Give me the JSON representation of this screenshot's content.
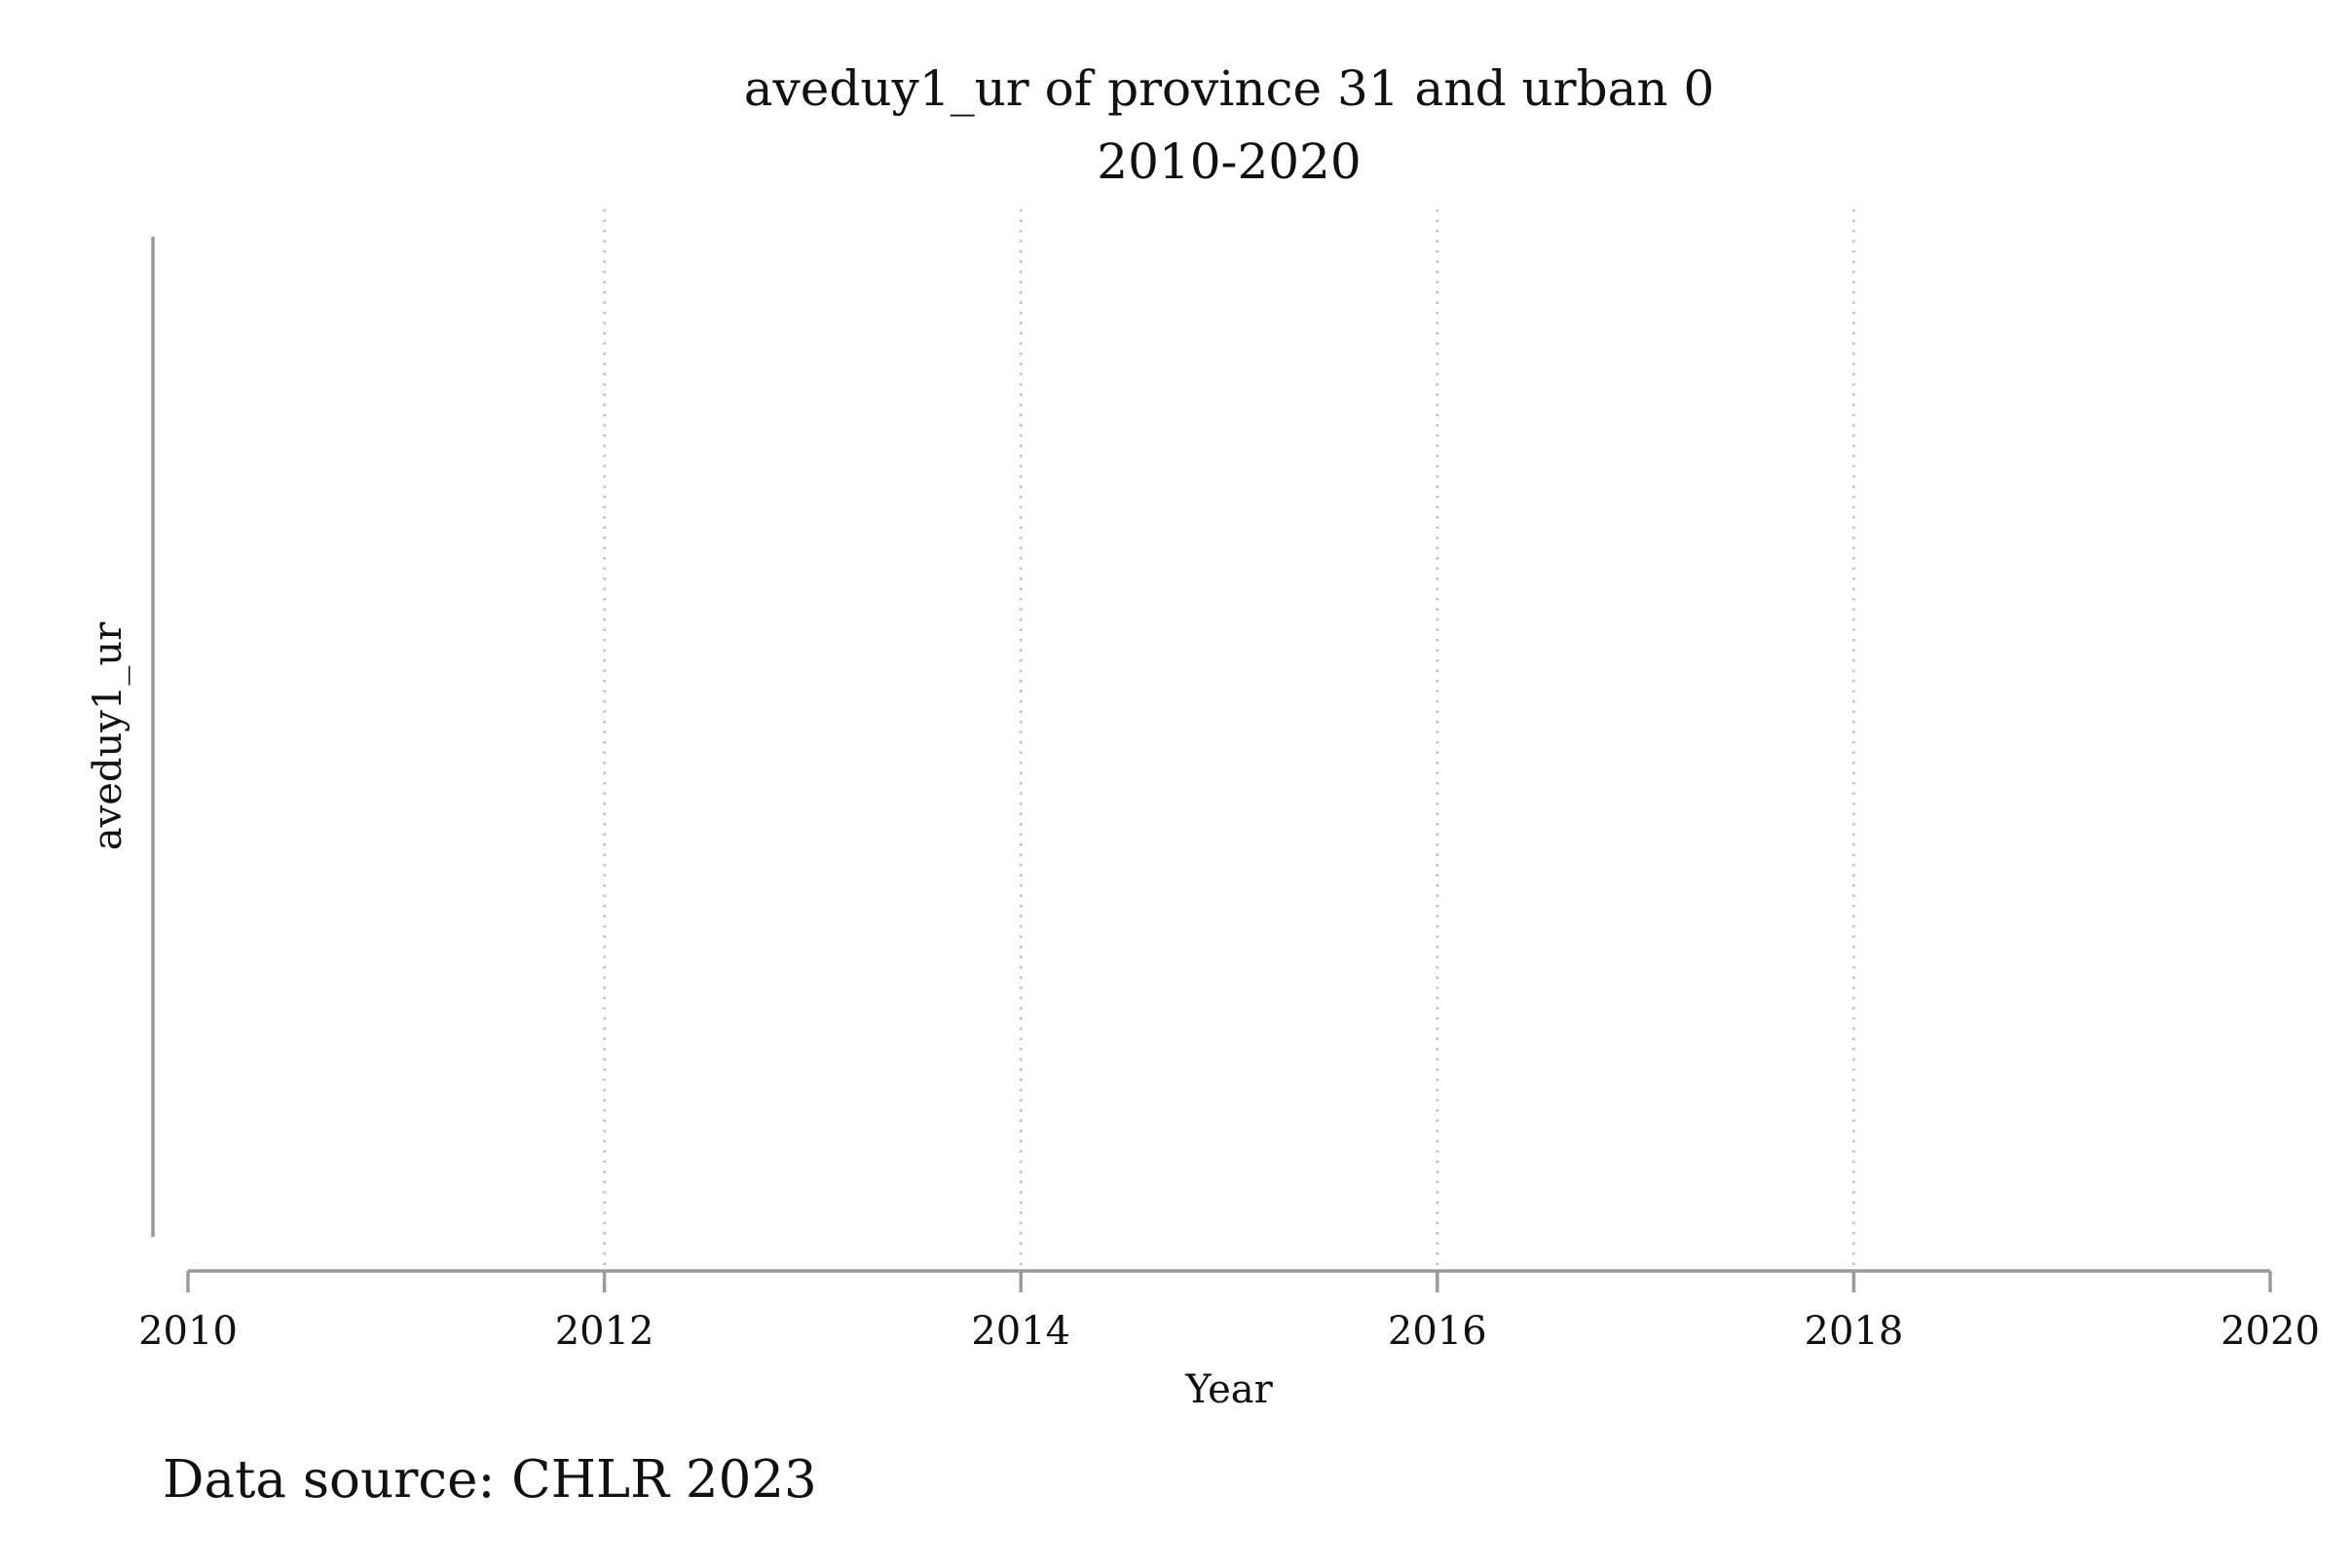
{
  "chart_data": {
    "type": "line",
    "title": "aveduy1_ur of province 31 and urban 0",
    "subtitle": "2010-2020",
    "xlabel": "Year",
    "ylabel": "aveduy1_ur",
    "xlim": [
      2010,
      2020
    ],
    "x_ticks": [
      "2010",
      "2012",
      "2014",
      "2016",
      "2018",
      "2020"
    ],
    "x_tick_values": [
      2010,
      2012,
      2014,
      2016,
      2018,
      2020
    ],
    "grid": true,
    "series": [],
    "note": "Data source: CHLR 2023"
  }
}
